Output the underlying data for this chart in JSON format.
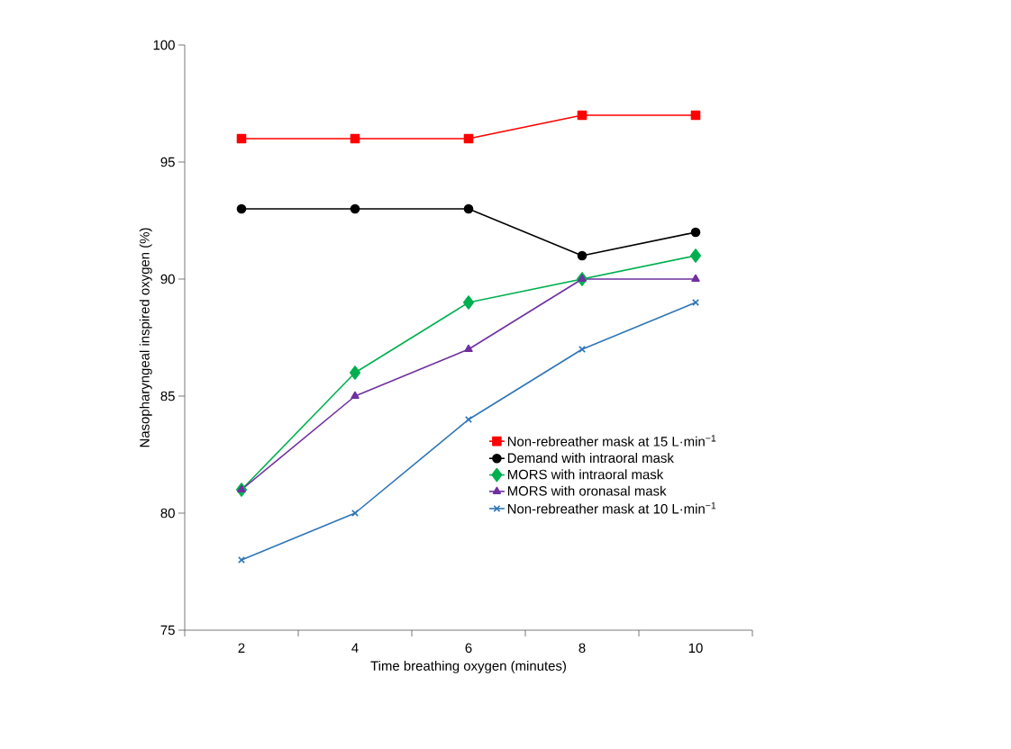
{
  "chart_data": {
    "type": "line",
    "xlabel": "Time breathing oxygen (minutes)",
    "ylabel": "Nasopharyngeal inspired oxygen (%)",
    "categories": [
      "2",
      "4",
      "6",
      "8",
      "10"
    ],
    "series": [
      {
        "name": "Non-rebreather mask at 15 L·min$^{−1}$",
        "color": "#ff0000",
        "marker": "square",
        "values": [
          96,
          96,
          96,
          97,
          97
        ]
      },
      {
        "name": "Demand with intraoral mask",
        "color": "#000000",
        "marker": "circle",
        "values": [
          93,
          93,
          93,
          91,
          92
        ]
      },
      {
        "name": "MORS with intraoral mask",
        "color": "#00b050",
        "marker": "diamond",
        "values": [
          81,
          86,
          89,
          90,
          91
        ]
      },
      {
        "name": "MORS with oronasal mask",
        "color": "#7030a0",
        "marker": "triangle",
        "values": [
          81,
          85,
          87,
          90,
          90
        ]
      },
      {
        "name": "Non-rebreather mask at 10 L·min$^{−1}$",
        "color": "#2e75b6",
        "marker": "cross",
        "values": [
          78,
          80,
          84,
          87,
          89
        ]
      }
    ],
    "ylim": [
      75,
      100
    ],
    "yticks": [
      75,
      80,
      85,
      90,
      95,
      100
    ],
    "grid": false,
    "legend": "bottom right",
    "line_style": "solid"
  }
}
